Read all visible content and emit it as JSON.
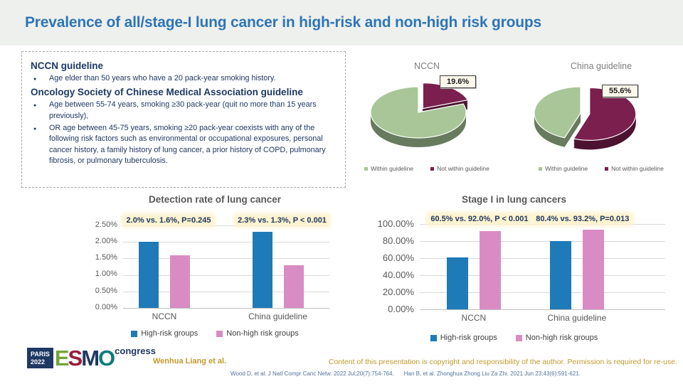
{
  "slide": {
    "title": "Prevalence of all/stage-I lung cancer in high-risk and non-high risk groups"
  },
  "guidelines": {
    "sections": [
      {
        "header": "NCCN guideline",
        "bullets": [
          "Age elder than 50 years who have a 20 pack-year smoking history."
        ]
      },
      {
        "header": "Oncology Society of Chinese Medical Association guideline",
        "bullets": [
          "Age between 55-74 years, smoking ≥30 pack-year (quit no more than 15 years previously),",
          "OR age between 45-75 years, smoking ≥20 pack-year coexists with any of the following risk factors such as environmental or occupational exposures, personal cancer history, a family history of lung cancer, a prior history of COPD, pulmonary fibrosis, or pulmonary tuberculosis."
        ]
      }
    ]
  },
  "chart_data": [
    {
      "type": "pie",
      "title": "NCCN",
      "slices": [
        {
          "label": "Not within guideline",
          "value": 19.6,
          "color": "#7a1f4e",
          "exploded": true
        },
        {
          "label": "Within guideline",
          "value": 80.4,
          "color": "#a8c697",
          "exploded": false
        }
      ],
      "callout": "19.6%",
      "legend": [
        {
          "label": "Within guideline",
          "color": "#a8c697"
        },
        {
          "label": "Not within guideline",
          "color": "#7a1f4e"
        }
      ]
    },
    {
      "type": "pie",
      "title": "China guideline",
      "slices": [
        {
          "label": "Not within guideline",
          "value": 55.6,
          "color": "#7a1f4e",
          "exploded": true
        },
        {
          "label": "Within guideline",
          "value": 44.4,
          "color": "#a8c697",
          "exploded": false
        }
      ],
      "callout": "55.6%",
      "legend": [
        {
          "label": "Within guideline",
          "color": "#a8c697"
        },
        {
          "label": "Not within guideline",
          "color": "#7a1f4e"
        }
      ]
    },
    {
      "type": "bar",
      "title": "Detection rate of lung cancer",
      "categories": [
        "NCCN",
        "China guideline"
      ],
      "series": [
        {
          "name": "High-risk groups",
          "color": "#1f7ab8",
          "values": [
            2.0,
            2.3
          ]
        },
        {
          "name": "Non-high risk groups",
          "color": "#d98cc3",
          "values": [
            1.6,
            1.3
          ]
        }
      ],
      "ylim": [
        0,
        2.5
      ],
      "yticks": [
        "2.50%",
        "2.00%",
        "1.50%",
        "1.00%",
        "0.50%",
        "0.00%"
      ],
      "annotations": [
        "2.0% vs. 1.6%, P=0.245",
        "2.3% vs. 1.3%, P < 0.001"
      ],
      "grid": true,
      "legend_position": "bottom"
    },
    {
      "type": "bar",
      "title": "Stage I in lung cancers",
      "categories": [
        "NCCN",
        "China guideline"
      ],
      "series": [
        {
          "name": "High-risk groups",
          "color": "#1f7ab8",
          "values": [
            60.5,
            80.4
          ]
        },
        {
          "name": "Non-high risk groups",
          "color": "#d98cc3",
          "values": [
            92.0,
            93.2
          ]
        }
      ],
      "ylim": [
        0,
        100
      ],
      "yticks": [
        "100.00%",
        "80.00%",
        "60.00%",
        "40.00%",
        "20.00%",
        "0.00%"
      ],
      "annotations": [
        "60.5% vs. 92.0%, P < 0.001",
        "80.4% vs. 93.2%, P=0.013"
      ],
      "grid": true,
      "legend_position": "bottom"
    }
  ],
  "footer": {
    "logo": {
      "event_lines": [
        "PARIS",
        "2022"
      ],
      "brand": "ESMO",
      "letter_colors": [
        "#76a23e",
        "#9c1c3c",
        "#1f3864",
        "#0e7c7b"
      ],
      "suffix": "congress"
    },
    "author": "Wenhua Liang et al.",
    "copyright": "Content of this presentation is copyright and responsibility of the author. Permission is required for re-use.",
    "references": [
      "Wood D, et al. J Natl Compr Canc Netw. 2022 Jul;20(7):754-764.",
      "Han B, et al. Zhonghua Zhong Liu Za Zhi. 2021 Jun 23;43(6):591-621."
    ]
  }
}
